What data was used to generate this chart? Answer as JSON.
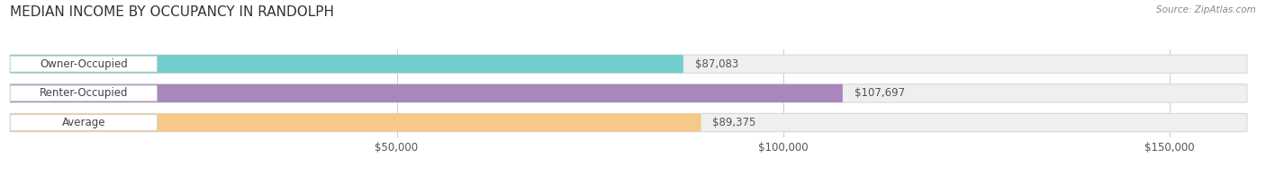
{
  "title": "MEDIAN INCOME BY OCCUPANCY IN RANDOLPH",
  "source": "Source: ZipAtlas.com",
  "categories": [
    "Owner-Occupied",
    "Renter-Occupied",
    "Average"
  ],
  "values": [
    87083,
    107697,
    89375
  ],
  "bar_colors": [
    "#72cece",
    "#a887bb",
    "#f5c98a"
  ],
  "bar_bg_color": "#efefef",
  "bar_bg_edge_color": "#d8d8d8",
  "label_texts": [
    "$87,083",
    "$107,697",
    "$89,375"
  ],
  "background_color": "#ffffff",
  "xlim": [
    0,
    160000
  ],
  "xticks": [
    50000,
    100000,
    150000
  ],
  "xtick_labels": [
    "$50,000",
    "$100,000",
    "$150,000"
  ],
  "figsize": [
    14.06,
    1.96
  ],
  "dpi": 100,
  "title_fontsize": 11,
  "bar_height": 0.62,
  "bar_gap": 0.38
}
